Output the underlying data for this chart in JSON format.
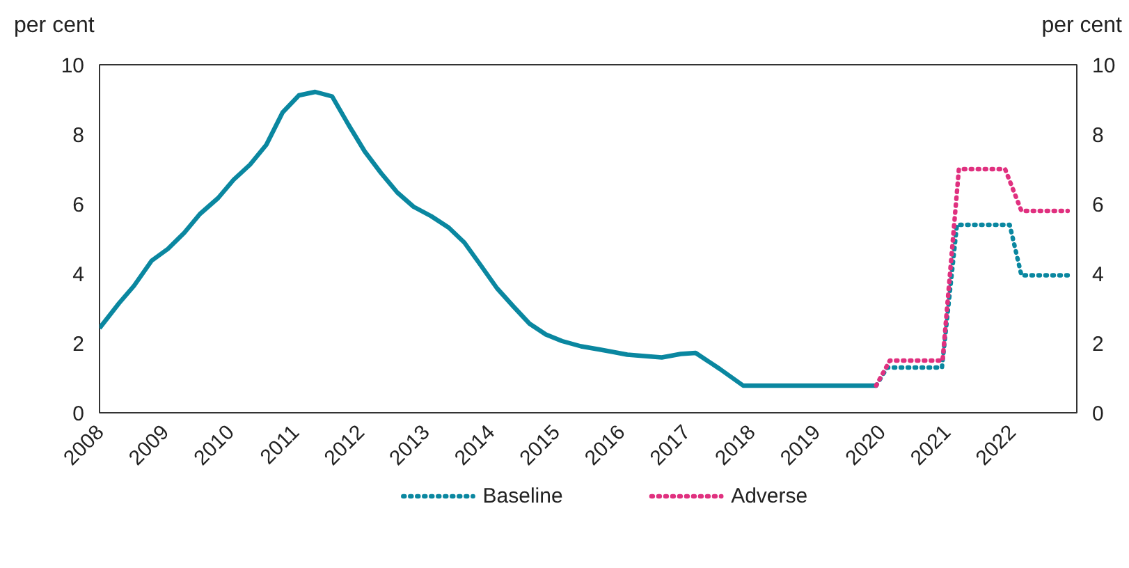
{
  "chart_data": {
    "type": "line",
    "ylabel": "per cent",
    "y2label": "per cent",
    "xlim": [
      2008,
      2023
    ],
    "xticks": [
      2008,
      2009,
      2010,
      2011,
      2012,
      2013,
      2014,
      2015,
      2016,
      2017,
      2018,
      2019,
      2020,
      2021,
      2022
    ],
    "ylim": [
      0,
      10
    ],
    "yticks": [
      0,
      2,
      4,
      6,
      8,
      10
    ],
    "y2lim": [
      0,
      10
    ],
    "y2ticks": [
      0,
      2,
      4,
      6,
      8,
      10
    ],
    "grid": false,
    "legend": "bottom",
    "marker": "none",
    "series": [
      {
        "color": "#0a87a0",
        "line_style": "solid",
        "x": [
          2008.0,
          2008.3,
          2008.53,
          2008.8,
          2009.05,
          2009.3,
          2009.54,
          2009.82,
          2010.06,
          2010.31,
          2010.56,
          2010.81,
          2011.06,
          2011.31,
          2011.57,
          2011.82,
          2012.07,
          2012.32,
          2012.57,
          2012.82,
          2013.09,
          2013.36,
          2013.6,
          2013.85,
          2014.1,
          2014.35,
          2014.6,
          2014.85,
          2015.1,
          2015.39,
          2015.67,
          2016.1,
          2016.63,
          2016.92,
          2017.15,
          2017.52,
          2017.88,
          2019.92
        ],
        "values": [
          2.43,
          3.15,
          3.65,
          4.37,
          4.71,
          5.17,
          5.71,
          6.17,
          6.7,
          7.13,
          7.7,
          8.63,
          9.12,
          9.22,
          9.09,
          8.28,
          7.51,
          6.89,
          6.33,
          5.92,
          5.65,
          5.32,
          4.89,
          4.24,
          3.58,
          3.06,
          2.56,
          2.25,
          2.06,
          1.91,
          1.82,
          1.67,
          1.59,
          1.69,
          1.72,
          1.26,
          0.78,
          0.78
        ]
      },
      {
        "name": "Baseline",
        "color": "#0a87a0",
        "line_style": "dotted",
        "x": [
          2019.92,
          2020.09,
          2020.93,
          2021.16,
          2021.97,
          2022.15,
          2022.86
        ],
        "values": [
          0.78,
          1.3,
          1.3,
          5.4,
          5.4,
          3.95,
          3.95
        ]
      },
      {
        "name": "Adverse",
        "color": "#e0307f",
        "line_style": "dotted",
        "x": [
          2019.92,
          2020.13,
          2020.94,
          2021.19,
          2021.9,
          2022.15,
          2022.86
        ],
        "values": [
          0.78,
          1.5,
          1.5,
          7.0,
          7.0,
          5.8,
          5.8
        ]
      }
    ]
  }
}
